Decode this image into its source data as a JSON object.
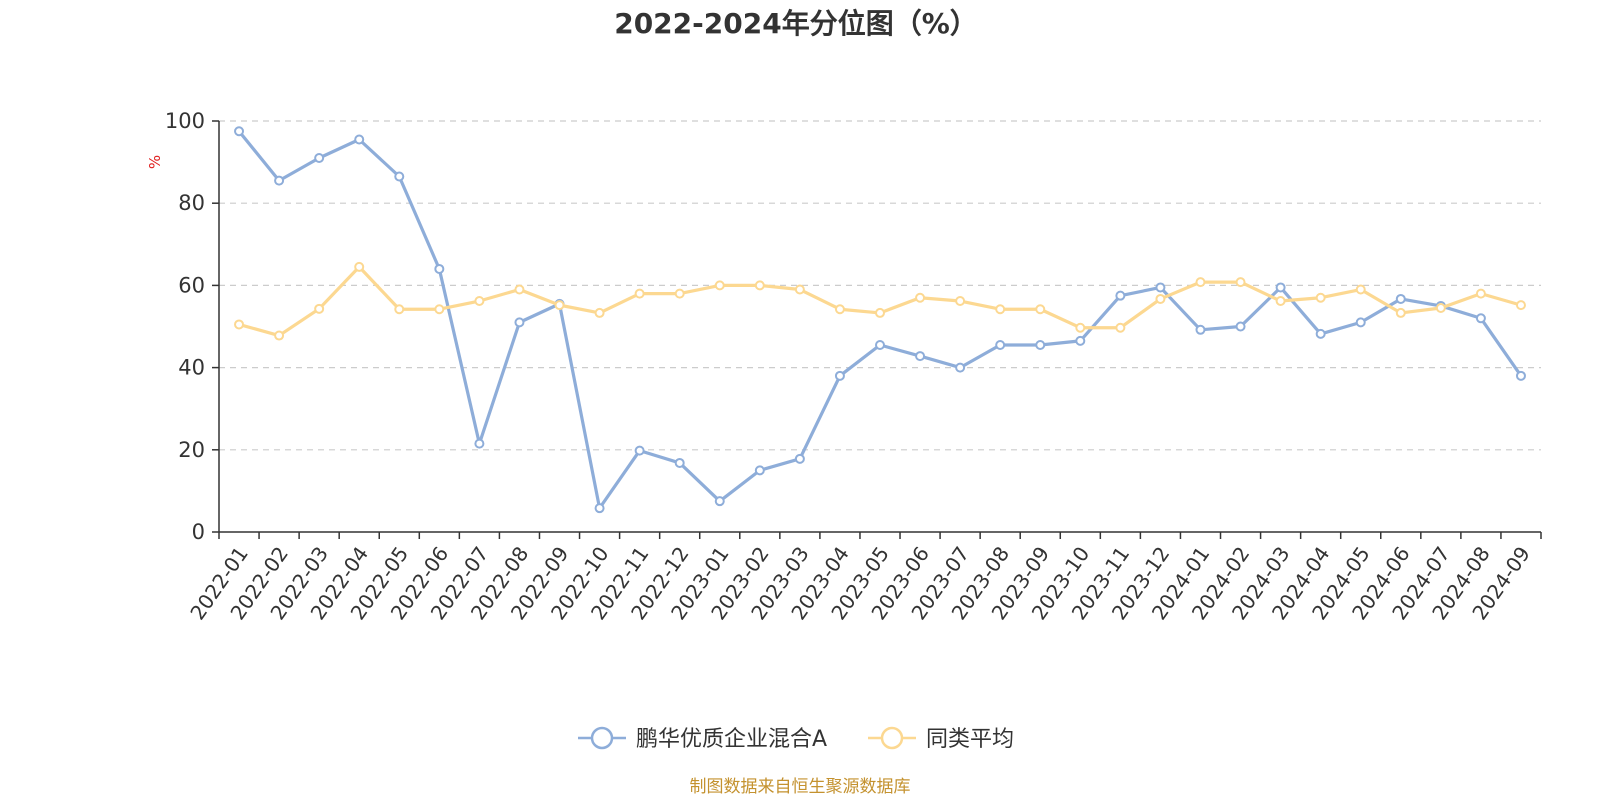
{
  "chart_data": {
    "type": "line",
    "title": "2022-2024年分位图（%）",
    "ylabel": "%",
    "ylim": [
      0,
      100
    ],
    "yticks": [
      "0",
      "20",
      "40",
      "60",
      "80",
      "100"
    ],
    "grid": true,
    "legend_position": "bottom",
    "categories": [
      "2022-01",
      "2022-02",
      "2022-03",
      "2022-04",
      "2022-05",
      "2022-06",
      "2022-07",
      "2022-08",
      "2022-09",
      "2022-10",
      "2022-11",
      "2022-12",
      "2023-01",
      "2023-02",
      "2023-03",
      "2023-04",
      "2023-05",
      "2023-06",
      "2023-07",
      "2023-08",
      "2023-09",
      "2023-10",
      "2023-11",
      "2023-12",
      "2024-01",
      "2024-02",
      "2024-03",
      "2024-04",
      "2024-05",
      "2024-06",
      "2024-07",
      "2024-08",
      "2024-09"
    ],
    "series": [
      {
        "name": "鹏华优质企业混合A",
        "color": "#8eadd9",
        "values": [
          97.5,
          85.5,
          91,
          95.5,
          86.5,
          64,
          21.5,
          51,
          55.5,
          5.8,
          19.8,
          16.8,
          7.5,
          15,
          17.8,
          38,
          45.5,
          42.8,
          40,
          45.5,
          45.5,
          46.5,
          57.5,
          59.5,
          49.2,
          50,
          59.5,
          48.2,
          51,
          56.7,
          55,
          52,
          38
        ]
      },
      {
        "name": "同类平均",
        "color": "#fcd891",
        "values": [
          50.5,
          47.8,
          54.3,
          64.5,
          54.2,
          54.2,
          56.2,
          59,
          55.2,
          53.3,
          58,
          58,
          60,
          60,
          59,
          54.2,
          53.3,
          57,
          56.2,
          54.2,
          54.2,
          49.7,
          49.7,
          56.7,
          60.8,
          60.8,
          56.2,
          57,
          59,
          53.3,
          54.5,
          58,
          55.2
        ]
      }
    ]
  },
  "footer": {
    "source_text": "制图数据来自恒生聚源数据库",
    "source_color": "#c4922f"
  },
  "style": {
    "unit_color": "#e02020",
    "axis_color": "#333333",
    "grid_color": "#cccccc"
  }
}
